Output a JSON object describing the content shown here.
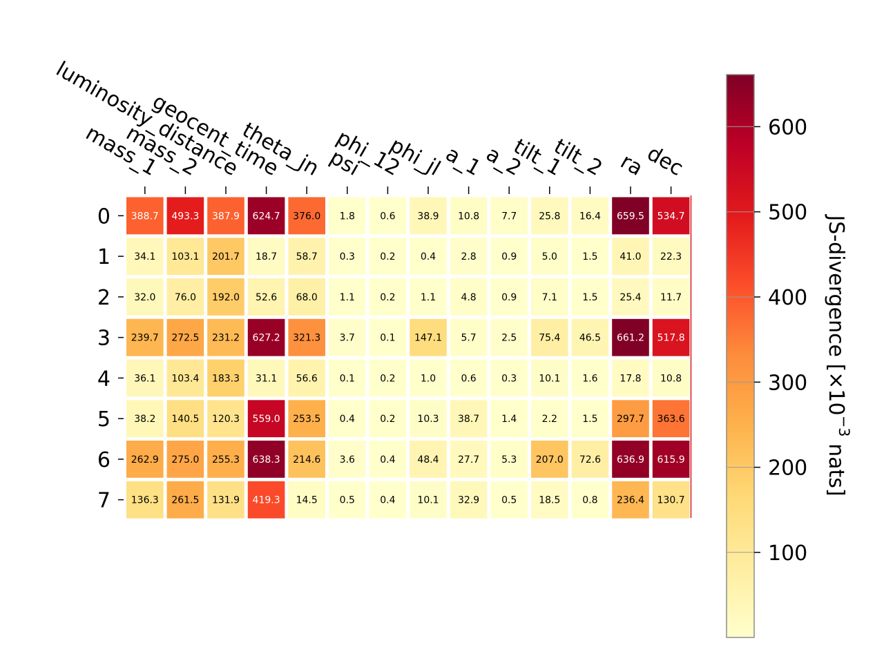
{
  "chart_data": {
    "type": "heatmap",
    "x_categories": [
      "mass_1",
      "mass_2",
      "luminosity_distance",
      "geocent_time",
      "theta_jn",
      "psi",
      "phi_12",
      "phi_jl",
      "a_1",
      "a_2",
      "tilt_1",
      "tilt_2",
      "ra",
      "dec"
    ],
    "y_categories": [
      "0",
      "1",
      "2",
      "3",
      "4",
      "5",
      "6",
      "7"
    ],
    "values": [
      [
        388.7,
        493.3,
        387.9,
        624.7,
        376.0,
        1.8,
        0.6,
        38.9,
        10.8,
        7.7,
        25.8,
        16.4,
        659.5,
        534.7
      ],
      [
        34.1,
        103.1,
        201.7,
        18.7,
        58.7,
        0.3,
        0.2,
        0.4,
        2.8,
        0.9,
        5.0,
        1.5,
        41.0,
        22.3
      ],
      [
        32.0,
        76.0,
        192.0,
        52.6,
        68.0,
        1.1,
        0.2,
        1.1,
        4.8,
        0.9,
        7.1,
        1.5,
        25.4,
        11.7
      ],
      [
        239.7,
        272.5,
        231.2,
        627.2,
        321.3,
        3.7,
        0.1,
        147.1,
        5.7,
        2.5,
        75.4,
        46.5,
        661.2,
        517.8
      ],
      [
        36.1,
        103.4,
        183.3,
        31.1,
        56.6,
        0.1,
        0.2,
        1.0,
        0.6,
        0.3,
        10.1,
        1.6,
        17.8,
        10.8
      ],
      [
        38.2,
        140.5,
        120.3,
        559.0,
        253.5,
        0.4,
        0.2,
        10.3,
        38.7,
        1.4,
        2.2,
        1.5,
        297.7,
        363.6
      ],
      [
        262.9,
        275.0,
        255.3,
        638.3,
        214.6,
        3.6,
        0.4,
        48.4,
        27.7,
        5.3,
        207.0,
        72.6,
        636.9,
        615.9
      ],
      [
        136.3,
        261.5,
        131.9,
        419.3,
        14.5,
        0.5,
        0.4,
        10.1,
        32.9,
        0.5,
        18.5,
        0.8,
        236.4,
        130.7
      ]
    ],
    "colormap": "YlOrRd",
    "vmin": 0.1,
    "vmax": 661.2,
    "colorbar": {
      "label": "JS-divergence [×10",
      "label_exp": "−3",
      "label_tail": " nats]",
      "ticks": [
        100,
        200,
        300,
        400,
        500,
        600
      ]
    },
    "grid": false
  }
}
